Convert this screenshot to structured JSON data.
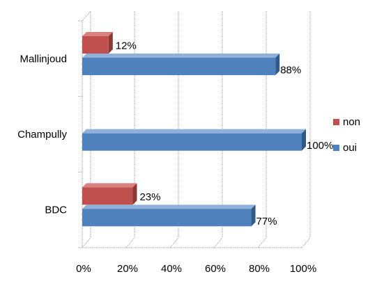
{
  "colors": {
    "non": "#c0504d",
    "oui": "#4f81bd",
    "grid": "#999999"
  },
  "chart_data": {
    "type": "bar",
    "orientation": "horizontal",
    "style": "3d",
    "categories": [
      "Mallinjoud",
      "Champully",
      "BDC"
    ],
    "series": [
      {
        "name": "non",
        "values": [
          12,
          0,
          23
        ],
        "labels": [
          "12%",
          "",
          "23%"
        ]
      },
      {
        "name": "oui",
        "values": [
          88,
          100,
          77
        ],
        "labels": [
          "88%",
          "100%",
          "77%"
        ]
      }
    ],
    "xlim": [
      0,
      100
    ],
    "xticks": [
      "0%",
      "20%",
      "40%",
      "60%",
      "80%",
      "100%"
    ],
    "grid": true,
    "legend": "right",
    "title": "",
    "xlabel": "",
    "ylabel": ""
  },
  "legend": [
    {
      "name": "non",
      "color": "#c0504d"
    },
    {
      "name": "oui",
      "color": "#4f81bd"
    }
  ]
}
